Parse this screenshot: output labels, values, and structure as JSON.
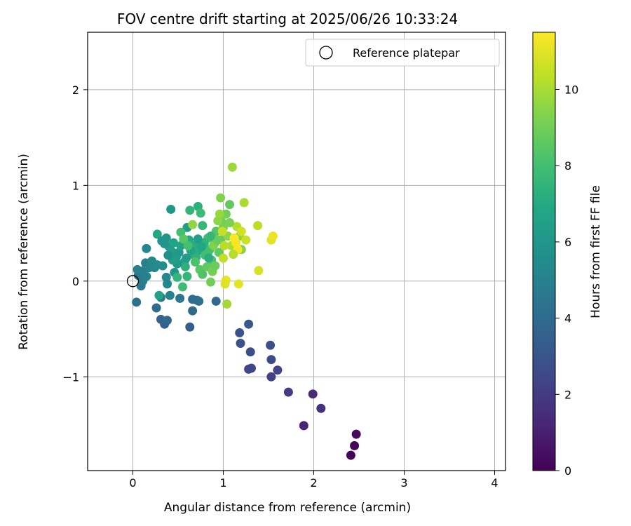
{
  "chart_data": {
    "type": "scatter",
    "title": "FOV centre drift starting at 2025/06/26 10:33:24",
    "xlabel": "Angular distance from reference (arcmin)",
    "ylabel": "Rotation from reference (arcmin)",
    "xlim": [
      -0.5,
      4.12
    ],
    "ylim": [
      -1.98,
      2.6
    ],
    "xticks": [
      0,
      1,
      2,
      3,
      4
    ],
    "yticks": [
      -1,
      0,
      1,
      2
    ],
    "xtick_labels": [
      "0",
      "1",
      "2",
      "3",
      "4"
    ],
    "ytick_labels": [
      "−1",
      "0",
      "1",
      "2"
    ],
    "grid": true,
    "legend": {
      "position": "top-right",
      "entries": [
        {
          "label": "Reference platepar",
          "marker": "open-circle"
        }
      ]
    },
    "reference_point": {
      "x": 0,
      "y": 0
    },
    "colorbar": {
      "label": "Hours from first FF file",
      "colormap": "viridis",
      "range": [
        0,
        11.5
      ],
      "ticks": [
        0,
        2,
        4,
        6,
        8,
        10
      ],
      "tick_labels": [
        "0",
        "2",
        "4",
        "6",
        "8",
        "10"
      ]
    },
    "points": [
      {
        "x": 2.41,
        "y": -1.82,
        "t": 0.1
      },
      {
        "x": 2.45,
        "y": -1.72,
        "t": 0.2
      },
      {
        "x": 2.47,
        "y": -1.6,
        "t": 0.3
      },
      {
        "x": 1.89,
        "y": -1.51,
        "t": 1.2
      },
      {
        "x": 2.08,
        "y": -1.33,
        "t": 1.6
      },
      {
        "x": 1.99,
        "y": -1.18,
        "t": 1.4
      },
      {
        "x": 1.72,
        "y": -1.16,
        "t": 2.0
      },
      {
        "x": 1.53,
        "y": -1.0,
        "t": 2.2
      },
      {
        "x": 1.6,
        "y": -0.93,
        "t": 2.3
      },
      {
        "x": 1.31,
        "y": -0.91,
        "t": 2.5
      },
      {
        "x": 1.28,
        "y": -0.92,
        "t": 2.4
      },
      {
        "x": 1.53,
        "y": -0.82,
        "t": 2.6
      },
      {
        "x": 1.3,
        "y": -0.74,
        "t": 2.7
      },
      {
        "x": 1.52,
        "y": -0.67,
        "t": 2.8
      },
      {
        "x": 1.19,
        "y": -0.65,
        "t": 2.9
      },
      {
        "x": 1.18,
        "y": -0.54,
        "t": 3.0
      },
      {
        "x": 1.28,
        "y": -0.45,
        "t": 3.1
      },
      {
        "x": 0.63,
        "y": -0.48,
        "t": 3.4
      },
      {
        "x": 0.35,
        "y": -0.45,
        "t": 3.6
      },
      {
        "x": 0.31,
        "y": -0.4,
        "t": 3.7
      },
      {
        "x": 0.38,
        "y": -0.41,
        "t": 3.8
      },
      {
        "x": 0.66,
        "y": -0.31,
        "t": 3.9
      },
      {
        "x": 0.26,
        "y": -0.28,
        "t": 4.0
      },
      {
        "x": 0.66,
        "y": -0.19,
        "t": 4.1
      },
      {
        "x": 0.71,
        "y": -0.2,
        "t": 4.1
      },
      {
        "x": 0.73,
        "y": -0.21,
        "t": 4.2
      },
      {
        "x": 0.04,
        "y": -0.22,
        "t": 4.3
      },
      {
        "x": 0.31,
        "y": -0.17,
        "t": 4.4
      },
      {
        "x": 0.52,
        "y": -0.18,
        "t": 4.5
      },
      {
        "x": 0.92,
        "y": -0.21,
        "t": 4.0
      },
      {
        "x": 0.06,
        "y": 0.06,
        "t": 4.6
      },
      {
        "x": 0.09,
        "y": -0.05,
        "t": 4.7
      },
      {
        "x": 0.11,
        "y": 0.0,
        "t": 4.8
      },
      {
        "x": 0.05,
        "y": 0.12,
        "t": 4.9
      },
      {
        "x": 0.12,
        "y": 0.11,
        "t": 5.0
      },
      {
        "x": 0.15,
        "y": 0.05,
        "t": 5.0
      },
      {
        "x": 0.18,
        "y": 0.14,
        "t": 5.2
      },
      {
        "x": 0.14,
        "y": 0.19,
        "t": 5.1
      },
      {
        "x": 0.24,
        "y": 0.14,
        "t": 5.3
      },
      {
        "x": 0.21,
        "y": 0.21,
        "t": 5.4
      },
      {
        "x": 0.27,
        "y": 0.17,
        "t": 5.5
      },
      {
        "x": 0.37,
        "y": 0.04,
        "t": 5.4
      },
      {
        "x": 0.38,
        "y": -0.03,
        "t": 5.2
      },
      {
        "x": 0.41,
        "y": -0.15,
        "t": 5.0
      },
      {
        "x": 0.33,
        "y": 0.16,
        "t": 5.6
      },
      {
        "x": 0.15,
        "y": 0.34,
        "t": 5.3
      },
      {
        "x": 0.27,
        "y": 0.49,
        "t": 6.8
      },
      {
        "x": 0.32,
        "y": 0.42,
        "t": 5.8
      },
      {
        "x": 0.37,
        "y": 0.45,
        "t": 6.0
      },
      {
        "x": 0.4,
        "y": 0.36,
        "t": 6.2
      },
      {
        "x": 0.43,
        "y": 0.31,
        "t": 6.4
      },
      {
        "x": 0.45,
        "y": 0.4,
        "t": 6.6
      },
      {
        "x": 0.48,
        "y": 0.25,
        "t": 6.3
      },
      {
        "x": 0.42,
        "y": 0.75,
        "t": 6.0
      },
      {
        "x": 0.51,
        "y": 0.3,
        "t": 6.1
      },
      {
        "x": 0.53,
        "y": 0.37,
        "t": 6.7
      },
      {
        "x": 0.57,
        "y": 0.2,
        "t": 6.5
      },
      {
        "x": 0.6,
        "y": 0.56,
        "t": 6.2
      },
      {
        "x": 0.62,
        "y": 0.43,
        "t": 6.9
      },
      {
        "x": 0.66,
        "y": 0.28,
        "t": 7.0
      },
      {
        "x": 0.68,
        "y": 0.37,
        "t": 7.2
      },
      {
        "x": 0.7,
        "y": 0.25,
        "t": 7.4
      },
      {
        "x": 0.72,
        "y": 0.78,
        "t": 7.3
      },
      {
        "x": 0.63,
        "y": 0.74,
        "t": 7.5
      },
      {
        "x": 0.75,
        "y": 0.71,
        "t": 7.8
      },
      {
        "x": 0.77,
        "y": 0.58,
        "t": 7.6
      },
      {
        "x": 0.73,
        "y": 0.32,
        "t": 7.1
      },
      {
        "x": 0.78,
        "y": 0.39,
        "t": 7.7
      },
      {
        "x": 0.8,
        "y": 0.27,
        "t": 7.9
      },
      {
        "x": 0.83,
        "y": 0.45,
        "t": 8.0
      },
      {
        "x": 0.85,
        "y": 0.33,
        "t": 8.1
      },
      {
        "x": 0.87,
        "y": 0.22,
        "t": 8.2
      },
      {
        "x": 0.9,
        "y": 0.39,
        "t": 8.3
      },
      {
        "x": 0.92,
        "y": 0.52,
        "t": 8.4
      },
      {
        "x": 0.95,
        "y": 0.3,
        "t": 8.6
      },
      {
        "x": 0.97,
        "y": 0.43,
        "t": 8.8
      },
      {
        "x": 0.98,
        "y": 0.62,
        "t": 9.0
      },
      {
        "x": 1.0,
        "y": 0.56,
        "t": 9.2
      },
      {
        "x": 0.97,
        "y": 0.87,
        "t": 9.3
      },
      {
        "x": 1.03,
        "y": 0.7,
        "t": 9.0
      },
      {
        "x": 1.05,
        "y": 0.47,
        "t": 9.5
      },
      {
        "x": 1.07,
        "y": 0.8,
        "t": 8.7
      },
      {
        "x": 1.1,
        "y": 1.19,
        "t": 9.8
      },
      {
        "x": 1.15,
        "y": 0.57,
        "t": 10.2
      },
      {
        "x": 1.18,
        "y": 0.47,
        "t": 9.6
      },
      {
        "x": 1.2,
        "y": 0.33,
        "t": 9.4
      },
      {
        "x": 1.23,
        "y": 0.82,
        "t": 10.0
      },
      {
        "x": 1.25,
        "y": 0.43,
        "t": 10.6
      },
      {
        "x": 1.38,
        "y": 0.58,
        "t": 10.3
      },
      {
        "x": 1.39,
        "y": 0.11,
        "t": 10.8
      },
      {
        "x": 1.53,
        "y": 0.43,
        "t": 11.0
      },
      {
        "x": 1.55,
        "y": 0.47,
        "t": 11.2
      },
      {
        "x": 1.17,
        "y": -0.03,
        "t": 11.0
      },
      {
        "x": 1.03,
        "y": 0.01,
        "t": 11.1
      },
      {
        "x": 1.02,
        "y": -0.03,
        "t": 10.9
      },
      {
        "x": 1.04,
        "y": -0.24,
        "t": 9.9
      },
      {
        "x": 1.0,
        "y": 0.24,
        "t": 10.4
      },
      {
        "x": 1.09,
        "y": 0.37,
        "t": 10.1
      },
      {
        "x": 1.14,
        "y": 0.4,
        "t": 11.3
      },
      {
        "x": 1.16,
        "y": 0.33,
        "t": 11.4
      },
      {
        "x": 1.2,
        "y": 0.52,
        "t": 10.7
      },
      {
        "x": 1.12,
        "y": 0.45,
        "t": 11.5
      },
      {
        "x": 0.53,
        "y": 0.51,
        "t": 8.0
      },
      {
        "x": 0.56,
        "y": 0.44,
        "t": 8.5
      },
      {
        "x": 0.58,
        "y": 0.15,
        "t": 7.3
      },
      {
        "x": 0.6,
        "y": 0.05,
        "t": 7.6
      },
      {
        "x": 0.55,
        "y": -0.06,
        "t": 7.8
      },
      {
        "x": 0.66,
        "y": 0.59,
        "t": 9.6
      },
      {
        "x": 0.69,
        "y": 0.2,
        "t": 8.2
      },
      {
        "x": 0.74,
        "y": 0.12,
        "t": 8.5
      },
      {
        "x": 0.77,
        "y": 0.07,
        "t": 8.3
      },
      {
        "x": 0.82,
        "y": 0.15,
        "t": 8.7
      },
      {
        "x": 0.86,
        "y": -0.01,
        "t": 9.0
      },
      {
        "x": 0.88,
        "y": 0.1,
        "t": 9.1
      },
      {
        "x": 0.91,
        "y": 0.16,
        "t": 8.9
      },
      {
        "x": 0.94,
        "y": 0.63,
        "t": 9.5
      },
      {
        "x": 0.96,
        "y": 0.7,
        "t": 9.7
      },
      {
        "x": 0.99,
        "y": 0.52,
        "t": 10.5
      },
      {
        "x": 1.01,
        "y": 0.37,
        "t": 10.3
      },
      {
        "x": 0.89,
        "y": 0.37,
        "t": 9.3
      },
      {
        "x": 0.83,
        "y": 0.3,
        "t": 8.0
      },
      {
        "x": 0.79,
        "y": 0.4,
        "t": 7.4
      },
      {
        "x": 0.76,
        "y": 0.36,
        "t": 6.8
      },
      {
        "x": 0.64,
        "y": 0.32,
        "t": 6.6
      },
      {
        "x": 0.59,
        "y": 0.24,
        "t": 6.3
      },
      {
        "x": 0.49,
        "y": 0.18,
        "t": 6.1
      },
      {
        "x": 0.46,
        "y": 0.09,
        "t": 5.9
      },
      {
        "x": 0.44,
        "y": 0.22,
        "t": 6.4
      },
      {
        "x": 0.39,
        "y": 0.27,
        "t": 5.7
      },
      {
        "x": 0.35,
        "y": 0.39,
        "t": 5.9
      },
      {
        "x": 0.29,
        "y": -0.15,
        "t": 6.6
      },
      {
        "x": 0.49,
        "y": 0.04,
        "t": 7.5
      },
      {
        "x": 0.61,
        "y": 0.37,
        "t": 8.1
      },
      {
        "x": 0.84,
        "y": 0.24,
        "t": 7.2
      },
      {
        "x": 0.93,
        "y": 0.43,
        "t": 8.9
      },
      {
        "x": 1.07,
        "y": 0.61,
        "t": 9.2
      },
      {
        "x": 1.11,
        "y": 0.28,
        "t": 10.2
      },
      {
        "x": 0.72,
        "y": 0.44,
        "t": 6.4
      },
      {
        "x": 0.86,
        "y": 0.47,
        "t": 7.6
      }
    ]
  }
}
